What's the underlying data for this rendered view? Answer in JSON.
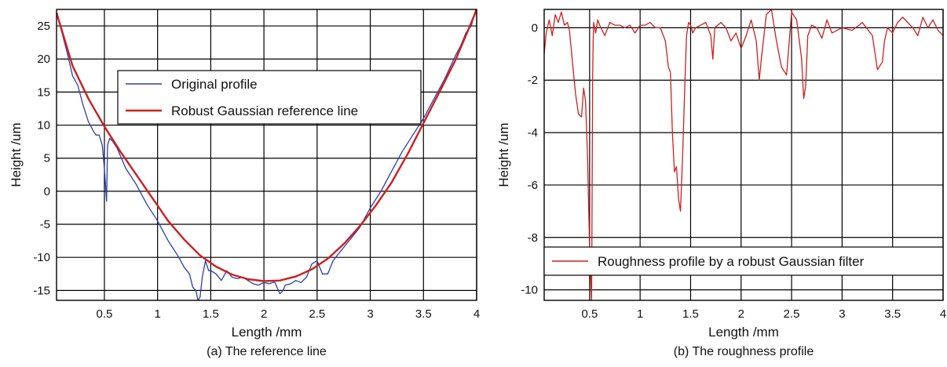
{
  "chart_data": [
    {
      "type": "line",
      "caption": "(a) The reference line",
      "xlabel": "Length /mm",
      "ylabel": "Height /um",
      "xlim": [
        0.05,
        4.0
      ],
      "ylim": [
        -16.5,
        27.5
      ],
      "xticks": [
        0.5,
        1,
        1.5,
        2,
        2.5,
        3,
        3.5,
        4
      ],
      "xtick_labels": [
        "0.5",
        "1",
        "1.5",
        "2",
        "2.5",
        "3",
        "3.5",
        "4"
      ],
      "yticks": [
        25,
        20,
        15,
        10,
        5,
        0,
        -5,
        -10,
        -15
      ],
      "ytick_labels": [
        "25",
        "20",
        "15",
        "10",
        "5",
        "0",
        "-5",
        "-10",
        "-15"
      ],
      "grid": true,
      "legend_position": "upper-center",
      "series": [
        {
          "name": "Original profile",
          "color": "#2b3fa8",
          "x": [
            0.05,
            0.1,
            0.15,
            0.2,
            0.25,
            0.3,
            0.35,
            0.4,
            0.42,
            0.45,
            0.48,
            0.5,
            0.52,
            0.53,
            0.55,
            0.58,
            0.62,
            0.7,
            0.8,
            0.9,
            1.0,
            1.1,
            1.2,
            1.25,
            1.3,
            1.33,
            1.36,
            1.38,
            1.4,
            1.42,
            1.45,
            1.48,
            1.5,
            1.55,
            1.6,
            1.65,
            1.7,
            1.75,
            1.8,
            1.85,
            1.9,
            1.95,
            2.0,
            2.05,
            2.1,
            2.15,
            2.18,
            2.2,
            2.25,
            2.3,
            2.35,
            2.4,
            2.45,
            2.5,
            2.55,
            2.6,
            2.65,
            2.7,
            2.8,
            2.9,
            3.0,
            3.1,
            3.2,
            3.3,
            3.4,
            3.5,
            3.6,
            3.7,
            3.8,
            3.85,
            3.9,
            3.95,
            4.0
          ],
          "y": [
            27,
            24,
            21,
            17.5,
            16,
            13,
            10.5,
            9,
            8.5,
            8.5,
            7,
            3.5,
            -1.5,
            7,
            8,
            7.5,
            6.5,
            3.5,
            1,
            -2,
            -4.5,
            -7.5,
            -10,
            -11.5,
            -12.5,
            -14.5,
            -15,
            -16.5,
            -16,
            -13,
            -10.5,
            -12,
            -12,
            -12.5,
            -13.5,
            -12,
            -13,
            -13.2,
            -13,
            -13.5,
            -14,
            -14.2,
            -13.8,
            -14,
            -13.7,
            -15.5,
            -15,
            -14.2,
            -14,
            -13.5,
            -13.8,
            -13,
            -11,
            -10.5,
            -12.5,
            -12.5,
            -10.5,
            -9.5,
            -7.5,
            -5.5,
            -2.5,
            0,
            3,
            6,
            8.5,
            11,
            14,
            17,
            20.5,
            22,
            24,
            25,
            28
          ]
        },
        {
          "name": "Robust Gaussian reference line",
          "color": "#cc2020",
          "x": [
            0.05,
            0.2,
            0.35,
            0.5,
            0.65,
            0.8,
            0.95,
            1.1,
            1.25,
            1.4,
            1.55,
            1.7,
            1.85,
            2.0,
            2.15,
            2.3,
            2.45,
            2.6,
            2.75,
            2.9,
            3.05,
            3.2,
            3.35,
            3.5,
            3.65,
            3.8,
            3.95,
            4.0
          ],
          "y": [
            27,
            19,
            14,
            9.8,
            6,
            2.5,
            -1,
            -4.5,
            -7.3,
            -9.7,
            -11.4,
            -12.6,
            -13.3,
            -13.6,
            -13.5,
            -12.9,
            -11.8,
            -10.2,
            -8,
            -5.3,
            -2.2,
            1.3,
            5.6,
            10.3,
            15,
            19.8,
            25.5,
            27.5
          ]
        }
      ]
    },
    {
      "type": "line",
      "caption": "(b) The roughness profile",
      "xlabel": "Length /mm",
      "ylabel": "Height /um",
      "xlim": [
        0.05,
        4.0
      ],
      "ylim": [
        -10.4,
        0.7
      ],
      "xticks": [
        0.5,
        1,
        1.5,
        2,
        2.5,
        3,
        3.5,
        4
      ],
      "xtick_labels": [
        "0.5",
        "1",
        "1.5",
        "2",
        "2.5",
        "3",
        "3.5",
        "4"
      ],
      "yticks": [
        0,
        -2,
        -4,
        -6,
        -8,
        -10
      ],
      "ytick_labels": [
        "0",
        "-2",
        "-4",
        "-6",
        "-8",
        "-10"
      ],
      "grid": true,
      "legend_position": "lower",
      "series": [
        {
          "name": "Roughness profile by a robust Gaussian filter",
          "color": "#cc2020",
          "x": [
            0.05,
            0.07,
            0.1,
            0.13,
            0.16,
            0.19,
            0.22,
            0.25,
            0.28,
            0.3,
            0.33,
            0.36,
            0.39,
            0.42,
            0.44,
            0.46,
            0.48,
            0.5,
            0.52,
            0.53,
            0.535,
            0.54,
            0.56,
            0.58,
            0.6,
            0.65,
            0.7,
            0.75,
            0.8,
            0.85,
            0.9,
            0.95,
            1.0,
            1.05,
            1.1,
            1.15,
            1.2,
            1.25,
            1.28,
            1.3,
            1.32,
            1.34,
            1.36,
            1.38,
            1.4,
            1.42,
            1.44,
            1.46,
            1.48,
            1.5,
            1.52,
            1.55,
            1.6,
            1.65,
            1.7,
            1.72,
            1.74,
            1.8,
            1.85,
            1.9,
            1.95,
            2.0,
            2.05,
            2.1,
            2.15,
            2.18,
            2.2,
            2.25,
            2.3,
            2.35,
            2.4,
            2.45,
            2.5,
            2.55,
            2.6,
            2.62,
            2.64,
            2.66,
            2.7,
            2.75,
            2.8,
            2.85,
            2.9,
            3.0,
            3.1,
            3.2,
            3.3,
            3.35,
            3.4,
            3.42,
            3.45,
            3.5,
            3.55,
            3.6,
            3.7,
            3.75,
            3.8,
            3.85,
            3.9,
            3.95,
            4.0
          ],
          "y": [
            -1.0,
            -0.2,
            0.3,
            -0.3,
            0.5,
            0.2,
            0.6,
            0.1,
            0.2,
            -0.1,
            -1.3,
            -2.5,
            -3.3,
            -3.4,
            -2.3,
            -2.8,
            -5.0,
            -8.5,
            -10.5,
            -2.0,
            -0.5,
            0.2,
            -0.2,
            0.3,
            0.1,
            -0.3,
            0.2,
            0.1,
            0.1,
            0.0,
            0.1,
            -0.2,
            0.1,
            0.1,
            0.2,
            0.0,
            0.0,
            -0.5,
            -1.5,
            -1.7,
            -4.0,
            -5.5,
            -5.3,
            -6.5,
            -7.0,
            -5.0,
            -2.5,
            -0.3,
            0.2,
            0.1,
            -0.2,
            0.0,
            0.1,
            0.2,
            -0.3,
            -1.2,
            0.0,
            0.2,
            0.0,
            -0.5,
            -0.2,
            -0.8,
            -0.3,
            0.3,
            -0.5,
            -2.0,
            -1.2,
            0.5,
            0.7,
            -0.5,
            -1.5,
            -1.8,
            0.6,
            0.3,
            -1.2,
            -2.7,
            -2.2,
            -0.3,
            0.1,
            0.0,
            -0.4,
            0.3,
            -0.2,
            0.0,
            -0.1,
            0.2,
            -0.3,
            -1.6,
            -1.3,
            -0.5,
            0.0,
            -0.2,
            0.2,
            0.4,
            0.0,
            -0.3,
            0.4,
            0.0,
            0.3,
            -0.1,
            -0.3
          ]
        }
      ]
    }
  ]
}
